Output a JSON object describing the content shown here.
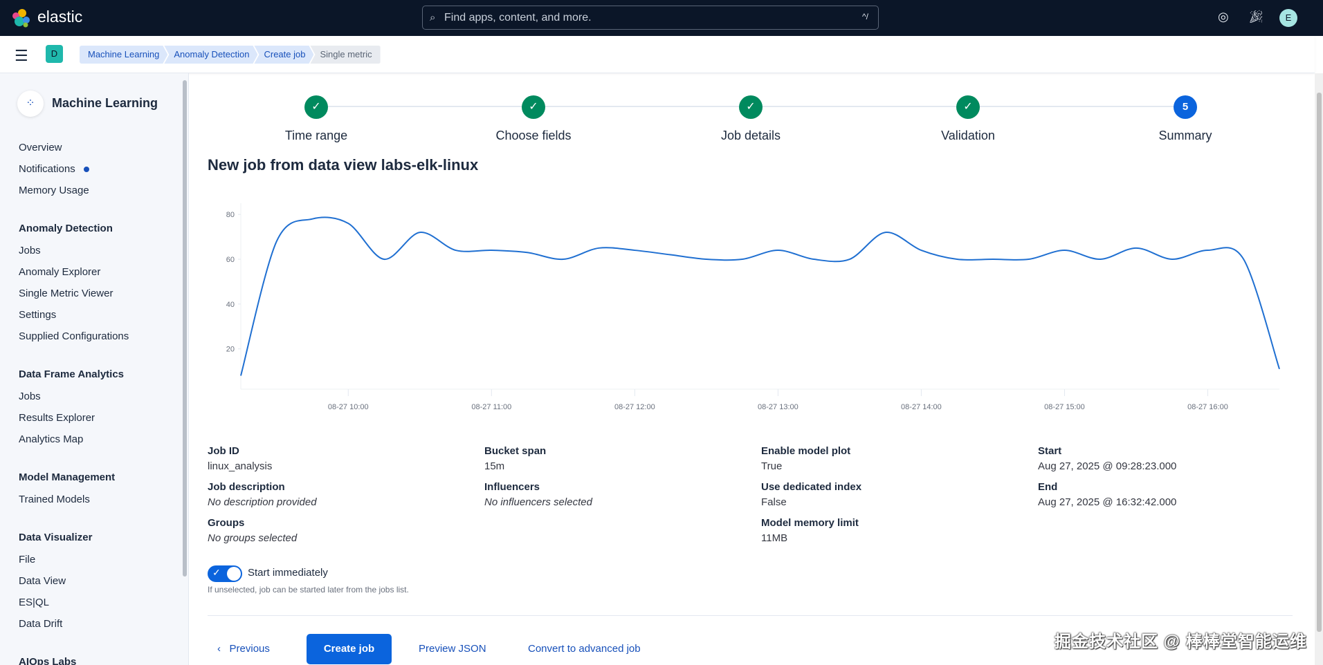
{
  "header": {
    "brand": "elastic",
    "search_placeholder": "Find apps, content, and more.",
    "search_shortcut": "^/",
    "avatar_initial": "E",
    "icons": [
      "help-lifebuoy-icon",
      "whats-new-icon"
    ]
  },
  "crumbbar": {
    "space_initial": "D",
    "breadcrumbs": [
      "Machine Learning",
      "Anomaly Detection",
      "Create job",
      "Single metric"
    ]
  },
  "sidebar": {
    "title": "Machine Learning",
    "top_items": [
      "Overview",
      "Notifications",
      "Memory Usage"
    ],
    "groups": [
      {
        "title": "Anomaly Detection",
        "items": [
          "Jobs",
          "Anomaly Explorer",
          "Single Metric Viewer",
          "Settings",
          "Supplied Configurations"
        ]
      },
      {
        "title": "Data Frame Analytics",
        "items": [
          "Jobs",
          "Results Explorer",
          "Analytics Map"
        ]
      },
      {
        "title": "Model Management",
        "items": [
          "Trained Models"
        ]
      },
      {
        "title": "Data Visualizer",
        "items": [
          "File",
          "Data View",
          "ES|QL",
          "Data Drift"
        ]
      },
      {
        "title": "AIOps Labs",
        "items": []
      }
    ],
    "notification_dot_color": "#1750ba"
  },
  "steps": [
    {
      "label": "Time range",
      "status": "complete"
    },
    {
      "label": "Choose fields",
      "status": "complete"
    },
    {
      "label": "Job details",
      "status": "complete"
    },
    {
      "label": "Validation",
      "status": "complete"
    },
    {
      "label": "Summary",
      "status": "current",
      "number": "5"
    }
  ],
  "page_title": "New job from data view labs-elk-linux",
  "chart_data": {
    "type": "line",
    "title": "",
    "xlabel": "",
    "ylabel": "",
    "x": [
      "09:15",
      "09:30",
      "09:45",
      "10:00",
      "10:15",
      "10:30",
      "10:45",
      "11:00",
      "11:15",
      "11:30",
      "11:45",
      "12:00",
      "12:15",
      "12:30",
      "12:45",
      "13:00",
      "13:15",
      "13:30",
      "13:45",
      "14:00",
      "14:15",
      "14:30",
      "14:45",
      "15:00",
      "15:15",
      "15:30",
      "15:45",
      "16:00",
      "16:15",
      "16:30"
    ],
    "values": [
      8,
      68,
      78,
      76,
      60,
      72,
      64,
      64,
      63,
      60,
      65,
      64,
      62,
      60,
      60,
      64,
      60,
      60,
      72,
      64,
      60,
      60,
      60,
      64,
      60,
      65,
      60,
      64,
      60,
      11
    ],
    "x_ticks": [
      "08-27 10:00",
      "08-27 11:00",
      "08-27 12:00",
      "08-27 13:00",
      "08-27 14:00",
      "08-27 15:00",
      "08-27 16:00"
    ],
    "y_ticks": [
      20,
      40,
      60,
      80
    ],
    "ylim": [
      2,
      85
    ],
    "color": "#1f6fd1",
    "grid": false
  },
  "summary": {
    "fields": [
      {
        "label": "Job ID",
        "value": "linux_analysis",
        "italic": false
      },
      {
        "label": "Job description",
        "value": "No description provided",
        "italic": true
      },
      {
        "label": "Groups",
        "value": "No groups selected",
        "italic": true
      },
      {
        "label": "Bucket span",
        "value": "15m",
        "italic": false
      },
      {
        "label": "Influencers",
        "value": "No influencers selected",
        "italic": true
      },
      {
        "label": "Enable model plot",
        "value": "True",
        "italic": false
      },
      {
        "label": "Use dedicated index",
        "value": "False",
        "italic": false
      },
      {
        "label": "Model memory limit",
        "value": "11MB",
        "italic": false
      },
      {
        "label": "Start",
        "value": "Aug 27, 2025 @ 09:28:23.000",
        "italic": false
      },
      {
        "label": "End",
        "value": "Aug 27, 2025 @ 16:32:42.000",
        "italic": false
      }
    ]
  },
  "start_toggle": {
    "label": "Start immediately",
    "on": true,
    "help": "If unselected, job can be started later from the jobs list."
  },
  "buttons": {
    "previous": "Previous",
    "create": "Create job",
    "preview": "Preview JSON",
    "convert": "Convert to advanced job"
  },
  "watermark": "掘金技术社区 @ 棒棒堂智能运维"
}
